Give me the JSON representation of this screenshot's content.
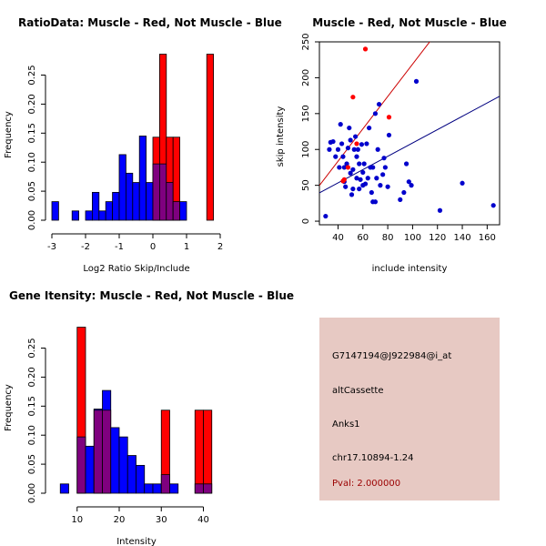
{
  "chart_data": [
    {
      "type": "bar",
      "title": "RatioData: Muscle - Red, Not Muscle - Blue",
      "xlabel": "Log2 Ratio Skip/Include",
      "ylabel": "Frequency",
      "xlim": [
        -3,
        2
      ],
      "ylim": [
        0,
        0.29
      ],
      "xticks": [
        "-3",
        "-2",
        "-1",
        "0",
        "1",
        "2"
      ],
      "yticks": [
        "0.00",
        "0.05",
        "0.10",
        "0.15",
        "0.20",
        "0.25"
      ],
      "bin_edges": [
        -3.0,
        -2.8,
        -2.6,
        -2.4,
        -2.2,
        -2.0,
        -1.8,
        -1.6,
        -1.4,
        -1.2,
        -1.0,
        -0.8,
        -0.6,
        -0.4,
        -0.2,
        0.0,
        0.2,
        0.4,
        0.6,
        0.8,
        1.0,
        1.2,
        1.4,
        1.6,
        1.8,
        2.0
      ],
      "series": [
        {
          "name": "Muscle",
          "color": "#ff0000",
          "values": [
            0,
            0,
            0,
            0,
            0,
            0,
            0,
            0,
            0,
            0,
            0,
            0,
            0,
            0,
            0,
            0.143,
            0.286,
            0.143,
            0.143,
            0,
            0,
            0,
            0,
            0.286,
            0
          ]
        },
        {
          "name": "Not Muscle",
          "color": "#0000ff",
          "values": [
            0.032,
            0,
            0,
            0.016,
            0,
            0.016,
            0.048,
            0.016,
            0.032,
            0.048,
            0.113,
            0.081,
            0.065,
            0.145,
            0.065,
            0.097,
            0.097,
            0.065,
            0.032,
            0.032,
            0,
            0,
            0,
            0,
            0
          ]
        }
      ],
      "overlap_color": "#7f007f"
    },
    {
      "type": "scatter",
      "title": "Muscle - Red, Not Muscle - Blue",
      "xlabel": "include intensity",
      "ylabel": "skip intensity",
      "xlim": [
        25,
        170
      ],
      "ylim": [
        -5,
        250
      ],
      "xticks": [
        "40",
        "60",
        "80",
        "100",
        "120",
        "140",
        "160"
      ],
      "yticks": [
        "0",
        "50",
        "100",
        "150",
        "200",
        "250"
      ],
      "series": [
        {
          "name": "Muscle",
          "color": "#ff0000",
          "points": [
            [
              62,
              240
            ],
            [
              52,
              173
            ],
            [
              81,
              145
            ],
            [
              45,
              58
            ],
            [
              44,
              56
            ],
            [
              48,
              75
            ],
            [
              55,
              108
            ]
          ]
        },
        {
          "name": "Not Muscle",
          "color": "#0000cc",
          "points": [
            [
              30,
              7
            ],
            [
              33,
              100
            ],
            [
              34,
              110
            ],
            [
              36,
              111
            ],
            [
              38,
              90
            ],
            [
              40,
              100
            ],
            [
              41,
              75
            ],
            [
              42,
              135
            ],
            [
              43,
              108
            ],
            [
              44,
              90
            ],
            [
              45,
              75
            ],
            [
              45,
              55
            ],
            [
              46,
              48
            ],
            [
              47,
              80
            ],
            [
              48,
              102
            ],
            [
              49,
              130
            ],
            [
              50,
              113
            ],
            [
              50,
              67
            ],
            [
              51,
              37
            ],
            [
              52,
              72
            ],
            [
              52,
              45
            ],
            [
              53,
              100
            ],
            [
              54,
              118
            ],
            [
              55,
              90
            ],
            [
              55,
              60
            ],
            [
              56,
              100
            ],
            [
              57,
              80
            ],
            [
              57,
              45
            ],
            [
              58,
              58
            ],
            [
              59,
              107
            ],
            [
              60,
              68
            ],
            [
              60,
              50
            ],
            [
              61,
              80
            ],
            [
              62,
              52
            ],
            [
              63,
              108
            ],
            [
              64,
              60
            ],
            [
              65,
              130
            ],
            [
              66,
              75
            ],
            [
              67,
              40
            ],
            [
              68,
              27
            ],
            [
              68,
              75
            ],
            [
              70,
              150
            ],
            [
              70,
              27
            ],
            [
              71,
              60
            ],
            [
              72,
              100
            ],
            [
              73,
              163
            ],
            [
              74,
              50
            ],
            [
              76,
              65
            ],
            [
              77,
              88
            ],
            [
              78,
              75
            ],
            [
              80,
              48
            ],
            [
              81,
              120
            ],
            [
              90,
              30
            ],
            [
              93,
              40
            ],
            [
              95,
              80
            ],
            [
              97,
              55
            ],
            [
              99,
              50
            ],
            [
              103,
              195
            ],
            [
              122,
              15
            ],
            [
              140,
              53
            ],
            [
              165,
              22
            ]
          ]
        }
      ],
      "fit_lines": [
        {
          "name": "Muscle fit",
          "color": "#cc0000",
          "intercept": -6.6,
          "slope": 2.256
        },
        {
          "name": "Not Muscle fit",
          "color": "#000080",
          "intercept": 16.2,
          "slope": 0.929
        }
      ]
    },
    {
      "type": "bar",
      "title": "Gene Itensity: Muscle - Red, Not Muscle - Blue",
      "xlabel": "Intensity",
      "ylabel": "Frequency",
      "xlim": [
        4,
        44
      ],
      "ylim": [
        0,
        0.29
      ],
      "xticks": [
        "10",
        "20",
        "30",
        "40"
      ],
      "yticks": [
        "0.00",
        "0.05",
        "0.10",
        "0.15",
        "0.20",
        "0.25"
      ],
      "bin_edges": [
        6,
        8,
        10,
        12,
        14,
        16,
        18,
        20,
        22,
        24,
        26,
        28,
        30,
        32,
        34,
        36,
        38,
        40,
        42
      ],
      "series": [
        {
          "name": "Muscle",
          "color": "#ff0000",
          "values": [
            0,
            0,
            0.286,
            0,
            0.143,
            0.143,
            0,
            0,
            0,
            0,
            0,
            0,
            0.143,
            0,
            0,
            0,
            0.143,
            0.143
          ]
        },
        {
          "name": "Not Muscle",
          "color": "#0000ff",
          "values": [
            0.016,
            0,
            0.097,
            0.081,
            0.145,
            0.177,
            0.113,
            0.097,
            0.065,
            0.048,
            0.016,
            0.016,
            0.032,
            0.016,
            0,
            0,
            0.016,
            0.016
          ]
        }
      ],
      "overlap_color": "#7f007f"
    }
  ],
  "info": {
    "probe": "G7147194@J922984@i_at",
    "event_type": "altCassette",
    "gene": "Anks1",
    "location": "chr17.10894-1.24",
    "pval": "Pval: 2.000000"
  }
}
